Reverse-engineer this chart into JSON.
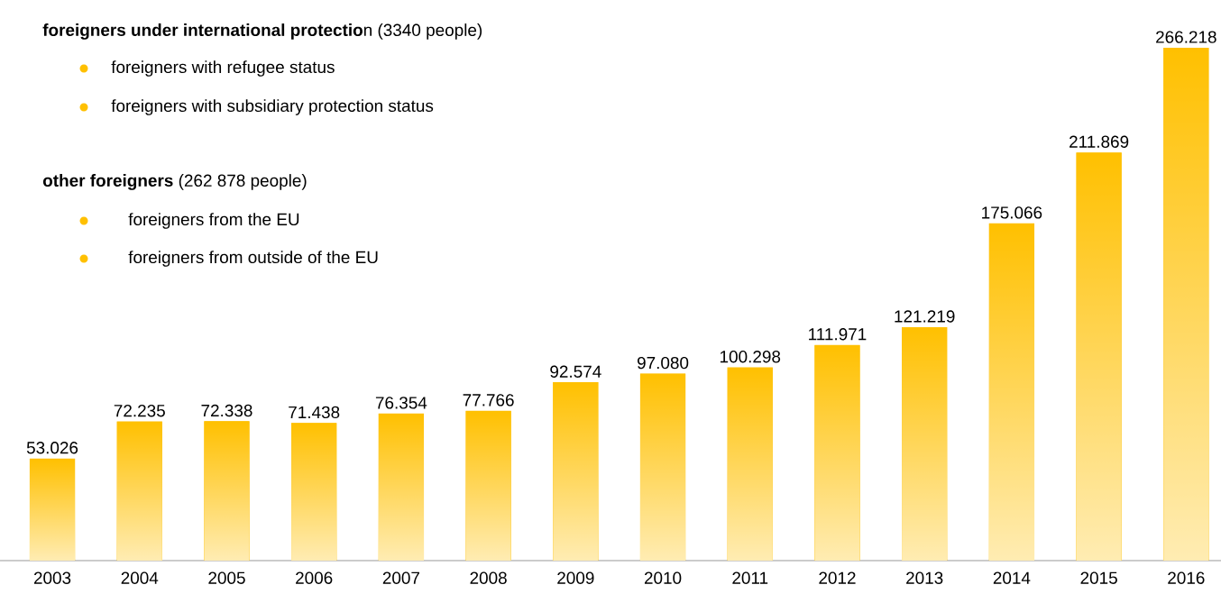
{
  "chart_data": {
    "type": "bar",
    "categories": [
      "2003",
      "2004",
      "2005",
      "2006",
      "2007",
      "2008",
      "2009",
      "2010",
      "2011",
      "2012",
      "2013",
      "2014",
      "2015",
      "2016"
    ],
    "values": [
      53026,
      72235,
      72338,
      71438,
      76354,
      77766,
      92574,
      97080,
      100298,
      111971,
      121219,
      175066,
      211869,
      266218
    ],
    "value_labels": [
      "53.026",
      "72.235",
      "72.338",
      "71.438",
      "76.354",
      "77.766",
      "92.574",
      "97.080",
      "100.298",
      "111.971",
      "121.219",
      "175.066",
      "211.869",
      "266.218"
    ],
    "color": "#ffc000",
    "annotations": [
      "**foreigners under international protectio**n (3340 people)",
      "foreigners with refugee status",
      "foreigners with subsidiary protection status",
      "**other foreigners** (262 878 people)",
      "foreigners from the EU",
      "foreigners from outside of the EU"
    ]
  }
}
